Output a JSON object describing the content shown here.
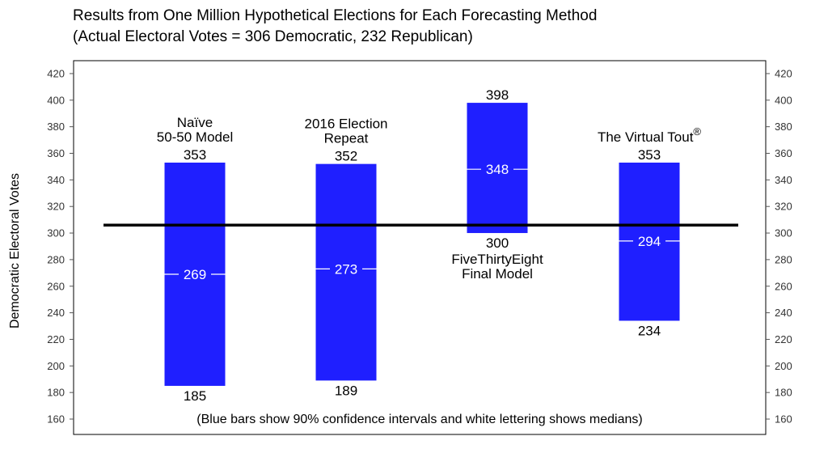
{
  "chart_data": {
    "type": "bar",
    "title": "Results from One Million Hypothetical Elections for Each Forecasting Method",
    "subtitle": "(Actual Electoral Votes = 306 Democratic,  232 Republican)",
    "ylabel": "Democratic Electoral Votes",
    "ylim": [
      150,
      432
    ],
    "yticks": [
      160,
      180,
      200,
      220,
      240,
      260,
      280,
      300,
      320,
      340,
      360,
      380,
      400,
      420
    ],
    "reference_line": 306,
    "bar_color": "#1f1fff",
    "note": "(Blue bars show 90% confidence intervals and white lettering shows medians)",
    "methods": [
      {
        "name_lines": [
          "Naïve",
          "50-50 Model"
        ],
        "name_pos": "above",
        "low": 185,
        "high": 353,
        "median": 269
      },
      {
        "name_lines": [
          "2016 Election",
          "Repeat"
        ],
        "name_pos": "above",
        "low": 189,
        "high": 352,
        "median": 273
      },
      {
        "name_lines": [
          "FiveThirtyEight",
          "Final Model"
        ],
        "name_pos": "below",
        "low": 300,
        "high": 398,
        "median": 348
      },
      {
        "name_lines": [
          "The Virtual Tout"
        ],
        "name_sup": "®",
        "name_pos": "above",
        "low": 234,
        "high": 353,
        "median": 294
      }
    ]
  }
}
